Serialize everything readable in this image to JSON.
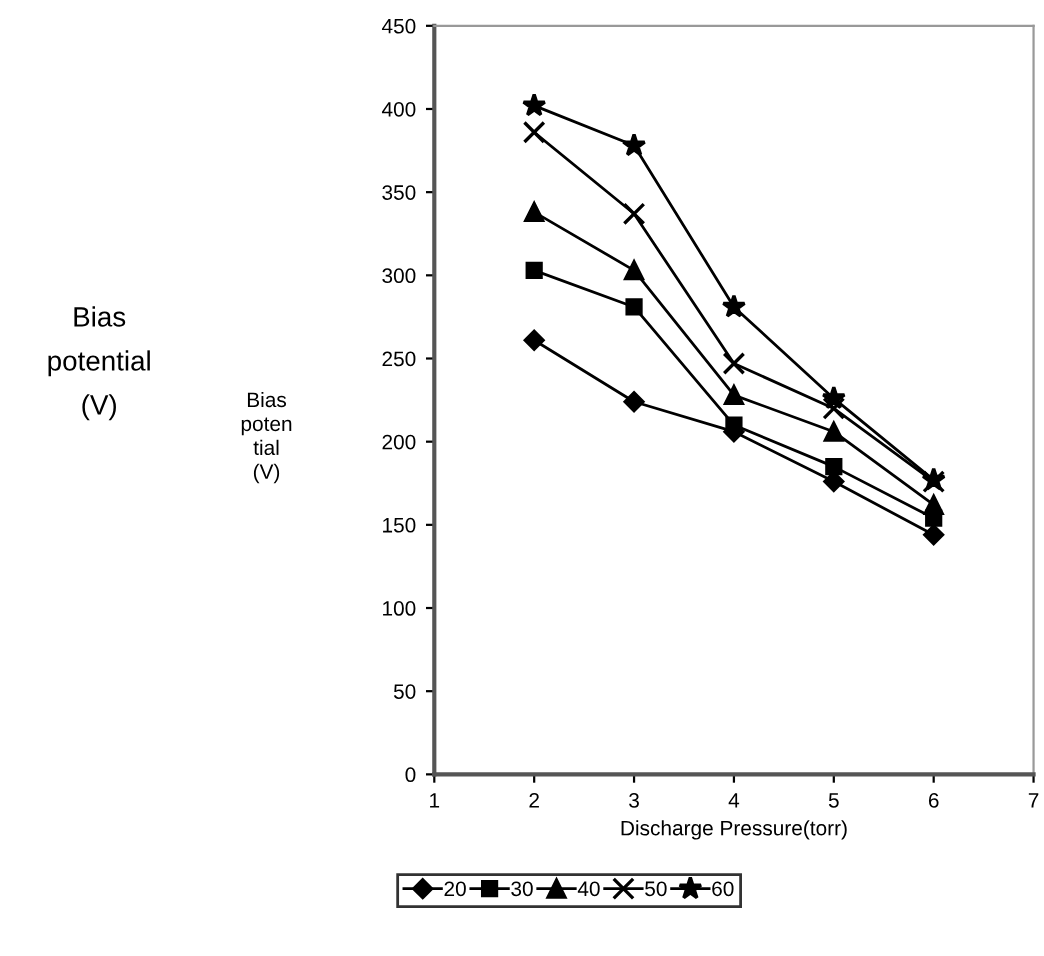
{
  "chart_data": {
    "type": "line",
    "xlabel": "Discharge Pressure(torr)",
    "ylabel": "Bias\npoten\ntial\n(V)",
    "annotations": [
      "Bias\npotential\n(V)"
    ],
    "x": [
      2,
      3,
      4,
      5,
      6
    ],
    "xlim": [
      1,
      7
    ],
    "xticks": [
      1,
      2,
      3,
      4,
      5,
      6,
      7
    ],
    "ylim": [
      0,
      450
    ],
    "yticks": [
      0,
      50,
      100,
      150,
      200,
      250,
      300,
      350,
      400,
      450
    ],
    "grid": false,
    "legend": "bottom",
    "line_style": "solid",
    "series": [
      {
        "name": "20",
        "color": "#000000",
        "marker": "diamond",
        "values": [
          261,
          224,
          206,
          176,
          144
        ]
      },
      {
        "name": "30",
        "color": "#000000",
        "marker": "square",
        "values": [
          303,
          281,
          210,
          185,
          154
        ]
      },
      {
        "name": "40",
        "color": "#000000",
        "marker": "triangle",
        "values": [
          338,
          303,
          228,
          206,
          162
        ]
      },
      {
        "name": "50",
        "color": "#000000",
        "marker": "cross",
        "values": [
          386,
          337,
          247,
          220,
          176
        ]
      },
      {
        "name": "60",
        "color": "#000000",
        "marker": "star",
        "values": [
          402,
          378,
          281,
          226,
          177
        ]
      }
    ]
  }
}
